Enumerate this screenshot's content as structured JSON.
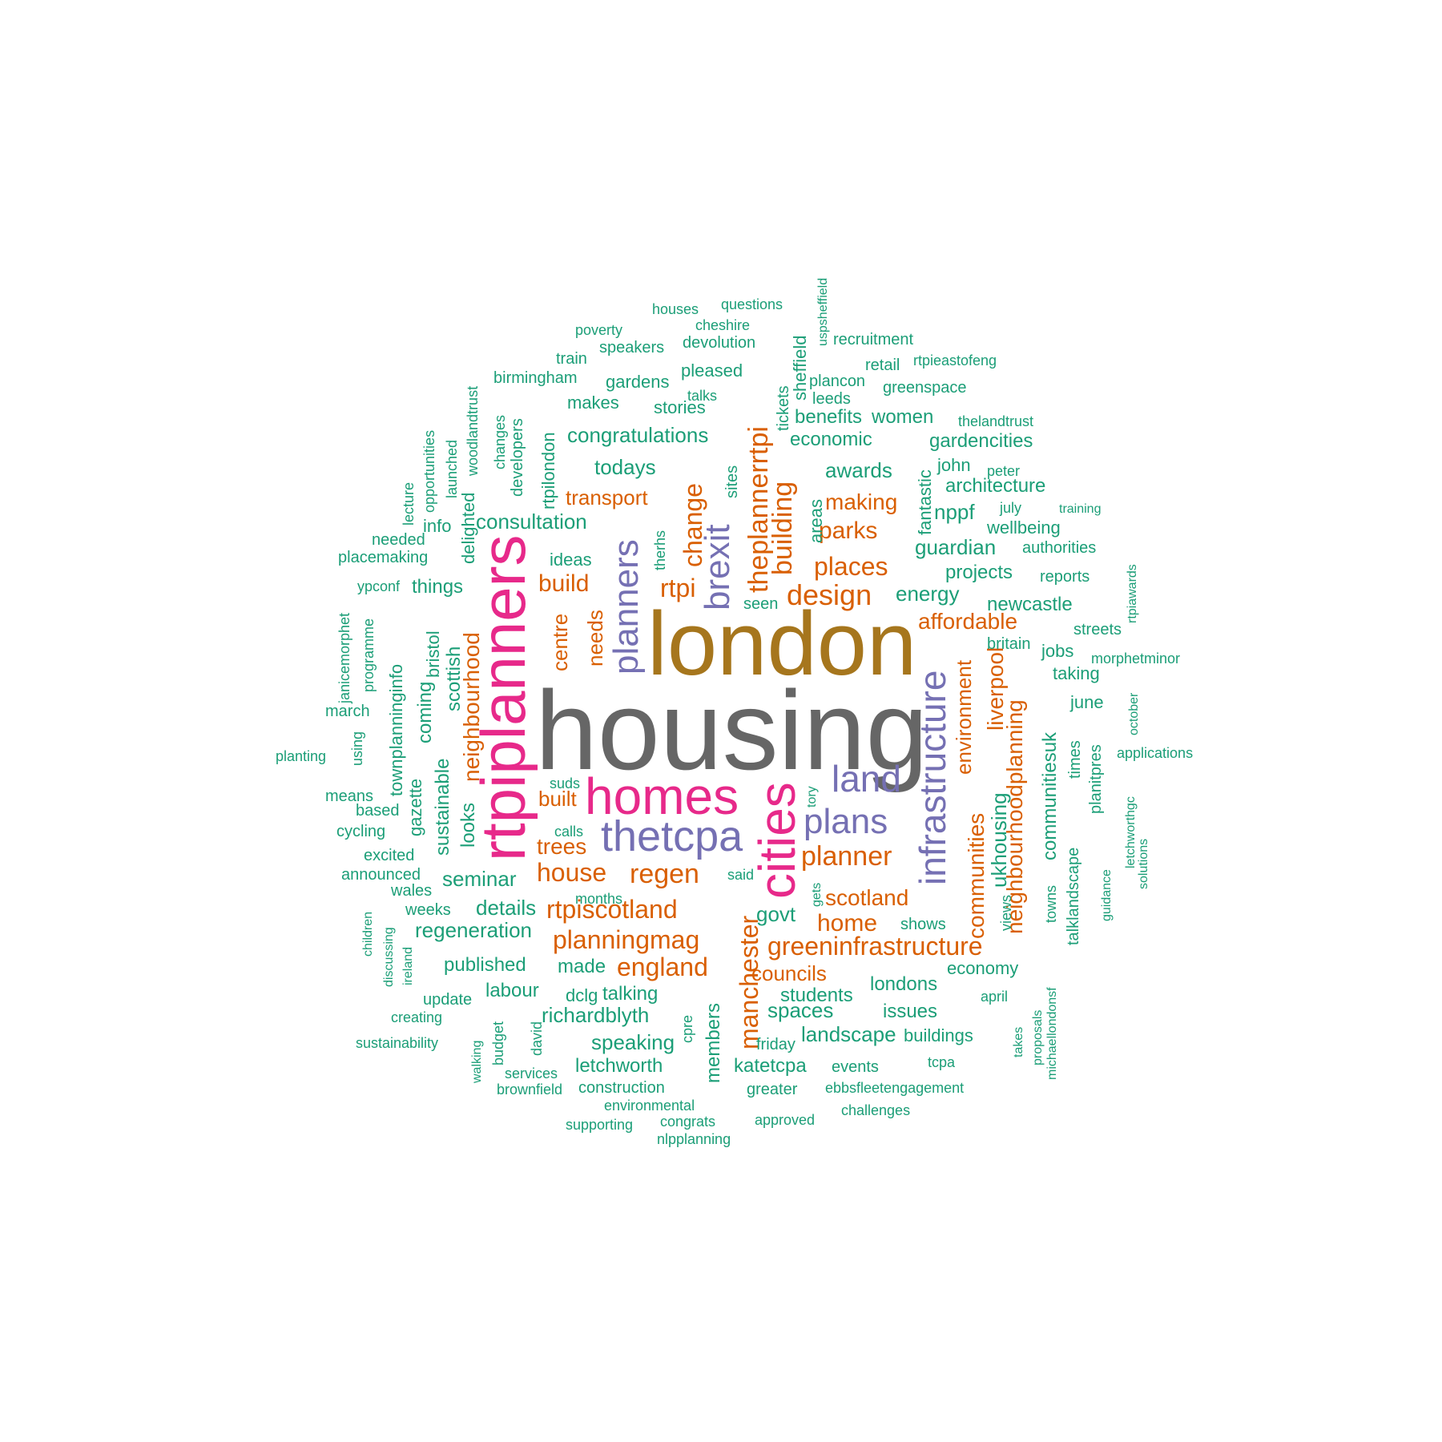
{
  "palette": {
    "gray": "#666666",
    "gold": "#a6761d",
    "magenta": "#e7298a",
    "purple": "#7570b3",
    "orange": "#d95f02",
    "green": "#1b9e77"
  },
  "words": [
    {
      "text": "housing",
      "size": 140,
      "color": "gray"
    },
    {
      "text": "london",
      "size": 112,
      "color": "gold"
    },
    {
      "text": "rtpiplanners",
      "size": 78,
      "color": "magenta"
    },
    {
      "text": "homes",
      "size": 64,
      "color": "magenta"
    },
    {
      "text": "cities",
      "size": 64,
      "color": "magenta"
    },
    {
      "text": "thetcpa",
      "size": 54,
      "color": "purple"
    },
    {
      "text": "infrastructure",
      "size": 46,
      "color": "purple"
    },
    {
      "text": "brexit",
      "size": 44,
      "color": "purple"
    },
    {
      "text": "land",
      "size": 46,
      "color": "purple"
    },
    {
      "text": "plans",
      "size": 44,
      "color": "purple"
    },
    {
      "text": "planners",
      "size": 44,
      "color": "purple"
    },
    {
      "text": "theplannerrtpi",
      "size": 34,
      "color": "orange"
    },
    {
      "text": "building",
      "size": 34,
      "color": "orange"
    },
    {
      "text": "change",
      "size": 32,
      "color": "orange"
    },
    {
      "text": "design",
      "size": 36,
      "color": "orange"
    },
    {
      "text": "places",
      "size": 32,
      "color": "orange"
    },
    {
      "text": "rtpi",
      "size": 32,
      "color": "orange"
    },
    {
      "text": "build",
      "size": 30,
      "color": "orange"
    },
    {
      "text": "parks",
      "size": 30,
      "color": "orange"
    },
    {
      "text": "making",
      "size": 28,
      "color": "orange"
    },
    {
      "text": "transport",
      "size": 26,
      "color": "orange"
    },
    {
      "text": "affordable",
      "size": 28,
      "color": "orange"
    },
    {
      "text": "planner",
      "size": 34,
      "color": "orange"
    },
    {
      "text": "regen",
      "size": 34,
      "color": "orange"
    },
    {
      "text": "house",
      "size": 32,
      "color": "orange"
    },
    {
      "text": "rtpiscotland",
      "size": 32,
      "color": "orange"
    },
    {
      "text": "planningmag",
      "size": 32,
      "color": "orange"
    },
    {
      "text": "england",
      "size": 32,
      "color": "orange"
    },
    {
      "text": "greeninfrastructure",
      "size": 32,
      "color": "orange"
    },
    {
      "text": "manchester",
      "size": 32,
      "color": "orange"
    },
    {
      "text": "neighbourhoodplanning",
      "size": 28,
      "color": "orange"
    },
    {
      "text": "communities",
      "size": 28,
      "color": "orange"
    },
    {
      "text": "environment",
      "size": 26,
      "color": "orange"
    },
    {
      "text": "liverpool",
      "size": 28,
      "color": "orange"
    },
    {
      "text": "neighbourhood",
      "size": 28,
      "color": "orange"
    },
    {
      "text": "centre",
      "size": 26,
      "color": "orange"
    },
    {
      "text": "needs",
      "size": 26,
      "color": "orange"
    },
    {
      "text": "scotland",
      "size": 28,
      "color": "orange"
    },
    {
      "text": "home",
      "size": 30,
      "color": "orange"
    },
    {
      "text": "councils",
      "size": 26,
      "color": "orange"
    },
    {
      "text": "built",
      "size": 26,
      "color": "orange"
    },
    {
      "text": "trees",
      "size": 28,
      "color": "orange"
    },
    {
      "text": "consultation",
      "size": 26,
      "color": "green"
    },
    {
      "text": "congratulations",
      "size": 26,
      "color": "green"
    },
    {
      "text": "awards",
      "size": 26,
      "color": "green"
    },
    {
      "text": "todays",
      "size": 26,
      "color": "green"
    },
    {
      "text": "guardian",
      "size": 26,
      "color": "green"
    },
    {
      "text": "energy",
      "size": 26,
      "color": "green"
    },
    {
      "text": "nppf",
      "size": 26,
      "color": "green"
    },
    {
      "text": "architecture",
      "size": 24,
      "color": "green"
    },
    {
      "text": "economic",
      "size": 24,
      "color": "green"
    },
    {
      "text": "gardencities",
      "size": 24,
      "color": "green"
    },
    {
      "text": "benefits",
      "size": 24,
      "color": "green"
    },
    {
      "text": "women",
      "size": 24,
      "color": "green"
    },
    {
      "text": "projects",
      "size": 24,
      "color": "green"
    },
    {
      "text": "newcastle",
      "size": 24,
      "color": "green"
    },
    {
      "text": "ukhousing",
      "size": 26,
      "color": "green"
    },
    {
      "text": "communitiesuk",
      "size": 24,
      "color": "green"
    },
    {
      "text": "scottish",
      "size": 24,
      "color": "green"
    },
    {
      "text": "things",
      "size": 24,
      "color": "green"
    },
    {
      "text": "seminar",
      "size": 26,
      "color": "green"
    },
    {
      "text": "details",
      "size": 26,
      "color": "green"
    },
    {
      "text": "regeneration",
      "size": 26,
      "color": "green"
    },
    {
      "text": "published",
      "size": 24,
      "color": "green"
    },
    {
      "text": "made",
      "size": 24,
      "color": "green"
    },
    {
      "text": "labour",
      "size": 24,
      "color": "green"
    },
    {
      "text": "talking",
      "size": 24,
      "color": "green"
    },
    {
      "text": "richardblyth",
      "size": 26,
      "color": "green"
    },
    {
      "text": "speaking",
      "size": 26,
      "color": "green"
    },
    {
      "text": "letchworth",
      "size": 24,
      "color": "green"
    },
    {
      "text": "govt",
      "size": 26,
      "color": "green"
    },
    {
      "text": "spaces",
      "size": 26,
      "color": "green"
    },
    {
      "text": "students",
      "size": 24,
      "color": "green"
    },
    {
      "text": "landscape",
      "size": 26,
      "color": "green"
    },
    {
      "text": "katetcpa",
      "size": 24,
      "color": "green"
    },
    {
      "text": "issues",
      "size": 24,
      "color": "green"
    },
    {
      "text": "londons",
      "size": 24,
      "color": "green"
    },
    {
      "text": "economy",
      "size": 22,
      "color": "green"
    },
    {
      "text": "buildings",
      "size": 22,
      "color": "green"
    },
    {
      "text": "members",
      "size": 24,
      "color": "green"
    },
    {
      "text": "sustainable",
      "size": 24,
      "color": "green"
    },
    {
      "text": "looks",
      "size": 24,
      "color": "green"
    },
    {
      "text": "coming",
      "size": 24,
      "color": "green"
    },
    {
      "text": "bristol",
      "size": 22,
      "color": "green"
    },
    {
      "text": "townplanninginfo",
      "size": 22,
      "color": "green"
    },
    {
      "text": "gazette",
      "size": 22,
      "color": "green"
    },
    {
      "text": "delighted",
      "size": 22,
      "color": "green"
    },
    {
      "text": "rtpilondon",
      "size": 22,
      "color": "green"
    },
    {
      "text": "developers",
      "size": 20,
      "color": "green"
    },
    {
      "text": "stories",
      "size": 22,
      "color": "green"
    },
    {
      "text": "makes",
      "size": 22,
      "color": "green"
    },
    {
      "text": "gardens",
      "size": 22,
      "color": "green"
    },
    {
      "text": "pleased",
      "size": 22,
      "color": "green"
    },
    {
      "text": "sheffield",
      "size": 22,
      "color": "green"
    },
    {
      "text": "sites",
      "size": 20,
      "color": "green"
    },
    {
      "text": "therhs",
      "size": 18,
      "color": "green"
    },
    {
      "text": "areas",
      "size": 22,
      "color": "green"
    },
    {
      "text": "fantastic",
      "size": 22,
      "color": "green"
    },
    {
      "text": "ideas",
      "size": 22,
      "color": "green"
    },
    {
      "text": "info",
      "size": 22,
      "color": "green"
    },
    {
      "text": "seen",
      "size": 20,
      "color": "green"
    },
    {
      "text": "john",
      "size": 22,
      "color": "green"
    },
    {
      "text": "wellbeing",
      "size": 22,
      "color": "green"
    },
    {
      "text": "authorities",
      "size": 20,
      "color": "green"
    },
    {
      "text": "reports",
      "size": 20,
      "color": "green"
    },
    {
      "text": "jobs",
      "size": 22,
      "color": "green"
    },
    {
      "text": "taking",
      "size": 22,
      "color": "green"
    },
    {
      "text": "june",
      "size": 22,
      "color": "green"
    },
    {
      "text": "streets",
      "size": 20,
      "color": "green"
    },
    {
      "text": "britain",
      "size": 20,
      "color": "green"
    },
    {
      "text": "times",
      "size": 20,
      "color": "green"
    },
    {
      "text": "planitpres",
      "size": 20,
      "color": "green"
    },
    {
      "text": "talklandscape",
      "size": 20,
      "color": "green"
    },
    {
      "text": "towns",
      "size": 18,
      "color": "green"
    },
    {
      "text": "views",
      "size": 18,
      "color": "green"
    },
    {
      "text": "shows",
      "size": 20,
      "color": "green"
    },
    {
      "text": "said",
      "size": 18,
      "color": "green"
    },
    {
      "text": "gets",
      "size": 16,
      "color": "green"
    },
    {
      "text": "tory",
      "size": 16,
      "color": "green"
    },
    {
      "text": "suds",
      "size": 18,
      "color": "green"
    },
    {
      "text": "calls",
      "size": 18,
      "color": "green"
    },
    {
      "text": "months",
      "size": 18,
      "color": "green"
    },
    {
      "text": "weeks",
      "size": 20,
      "color": "green"
    },
    {
      "text": "wales",
      "size": 20,
      "color": "green"
    },
    {
      "text": "announced",
      "size": 20,
      "color": "green"
    },
    {
      "text": "excited",
      "size": 20,
      "color": "green"
    },
    {
      "text": "cycling",
      "size": 20,
      "color": "green"
    },
    {
      "text": "based",
      "size": 20,
      "color": "green"
    },
    {
      "text": "means",
      "size": 20,
      "color": "green"
    },
    {
      "text": "planting",
      "size": 18,
      "color": "green"
    },
    {
      "text": "march",
      "size": 20,
      "color": "green"
    },
    {
      "text": "using",
      "size": 18,
      "color": "green"
    },
    {
      "text": "janicemorphet",
      "size": 18,
      "color": "green"
    },
    {
      "text": "programme",
      "size": 18,
      "color": "green"
    },
    {
      "text": "ypconf",
      "size": 18,
      "color": "green"
    },
    {
      "text": "placemaking",
      "size": 20,
      "color": "green"
    },
    {
      "text": "needed",
      "size": 20,
      "color": "green"
    },
    {
      "text": "lecture",
      "size": 18,
      "color": "green"
    },
    {
      "text": "opportunities",
      "size": 18,
      "color": "green"
    },
    {
      "text": "launched",
      "size": 18,
      "color": "green"
    },
    {
      "text": "woodlandtrust",
      "size": 18,
      "color": "green"
    },
    {
      "text": "changes",
      "size": 18,
      "color": "green"
    },
    {
      "text": "birmingham",
      "size": 20,
      "color": "green"
    },
    {
      "text": "train",
      "size": 20,
      "color": "green"
    },
    {
      "text": "poverty",
      "size": 18,
      "color": "green"
    },
    {
      "text": "speakers",
      "size": 20,
      "color": "green"
    },
    {
      "text": "houses",
      "size": 18,
      "color": "green"
    },
    {
      "text": "questions",
      "size": 18,
      "color": "green"
    },
    {
      "text": "cheshire",
      "size": 18,
      "color": "green"
    },
    {
      "text": "devolution",
      "size": 20,
      "color": "green"
    },
    {
      "text": "uspsheffield",
      "size": 16,
      "color": "green"
    },
    {
      "text": "recruitment",
      "size": 20,
      "color": "green"
    },
    {
      "text": "retail",
      "size": 20,
      "color": "green"
    },
    {
      "text": "rtpieastofeng",
      "size": 18,
      "color": "green"
    },
    {
      "text": "plancon",
      "size": 20,
      "color": "green"
    },
    {
      "text": "greenspace",
      "size": 20,
      "color": "green"
    },
    {
      "text": "tickets",
      "size": 20,
      "color": "green"
    },
    {
      "text": "talks",
      "size": 18,
      "color": "green"
    },
    {
      "text": "leeds",
      "size": 20,
      "color": "green"
    },
    {
      "text": "thelandtrust",
      "size": 18,
      "color": "green"
    },
    {
      "text": "peter",
      "size": 18,
      "color": "green"
    },
    {
      "text": "july",
      "size": 18,
      "color": "green"
    },
    {
      "text": "training",
      "size": 16,
      "color": "green"
    },
    {
      "text": "rtpiawards",
      "size": 16,
      "color": "green"
    },
    {
      "text": "morphetminor",
      "size": 18,
      "color": "green"
    },
    {
      "text": "october",
      "size": 16,
      "color": "green"
    },
    {
      "text": "applications",
      "size": 18,
      "color": "green"
    },
    {
      "text": "letchworthgc",
      "size": 16,
      "color": "green"
    },
    {
      "text": "solutions",
      "size": 16,
      "color": "green"
    },
    {
      "text": "guidance",
      "size": 16,
      "color": "green"
    },
    {
      "text": "michaellondonsf",
      "size": 16,
      "color": "green"
    },
    {
      "text": "proposals",
      "size": 16,
      "color": "green"
    },
    {
      "text": "takes",
      "size": 16,
      "color": "green"
    },
    {
      "text": "april",
      "size": 18,
      "color": "green"
    },
    {
      "text": "tcpa",
      "size": 18,
      "color": "green"
    },
    {
      "text": "events",
      "size": 20,
      "color": "green"
    },
    {
      "text": "friday",
      "size": 20,
      "color": "green"
    },
    {
      "text": "greater",
      "size": 20,
      "color": "green"
    },
    {
      "text": "ebbsfleetengagement",
      "size": 18,
      "color": "green"
    },
    {
      "text": "challenges",
      "size": 18,
      "color": "green"
    },
    {
      "text": "approved",
      "size": 18,
      "color": "green"
    },
    {
      "text": "congrats",
      "size": 18,
      "color": "green"
    },
    {
      "text": "nlpplanning",
      "size": 18,
      "color": "green"
    },
    {
      "text": "supporting",
      "size": 18,
      "color": "green"
    },
    {
      "text": "environmental",
      "size": 18,
      "color": "green"
    },
    {
      "text": "construction",
      "size": 20,
      "color": "green"
    },
    {
      "text": "brownfield",
      "size": 18,
      "color": "green"
    },
    {
      "text": "services",
      "size": 18,
      "color": "green"
    },
    {
      "text": "cpre",
      "size": 18,
      "color": "green"
    },
    {
      "text": "david",
      "size": 18,
      "color": "green"
    },
    {
      "text": "budget",
      "size": 18,
      "color": "green"
    },
    {
      "text": "walking",
      "size": 16,
      "color": "green"
    },
    {
      "text": "dclg",
      "size": 22,
      "color": "green"
    },
    {
      "text": "update",
      "size": 20,
      "color": "green"
    },
    {
      "text": "creating",
      "size": 18,
      "color": "green"
    },
    {
      "text": "sustainability",
      "size": 18,
      "color": "green"
    },
    {
      "text": "discussing",
      "size": 16,
      "color": "green"
    },
    {
      "text": "children",
      "size": 16,
      "color": "green"
    },
    {
      "text": "ireland",
      "size": 16,
      "color": "green"
    }
  ]
}
